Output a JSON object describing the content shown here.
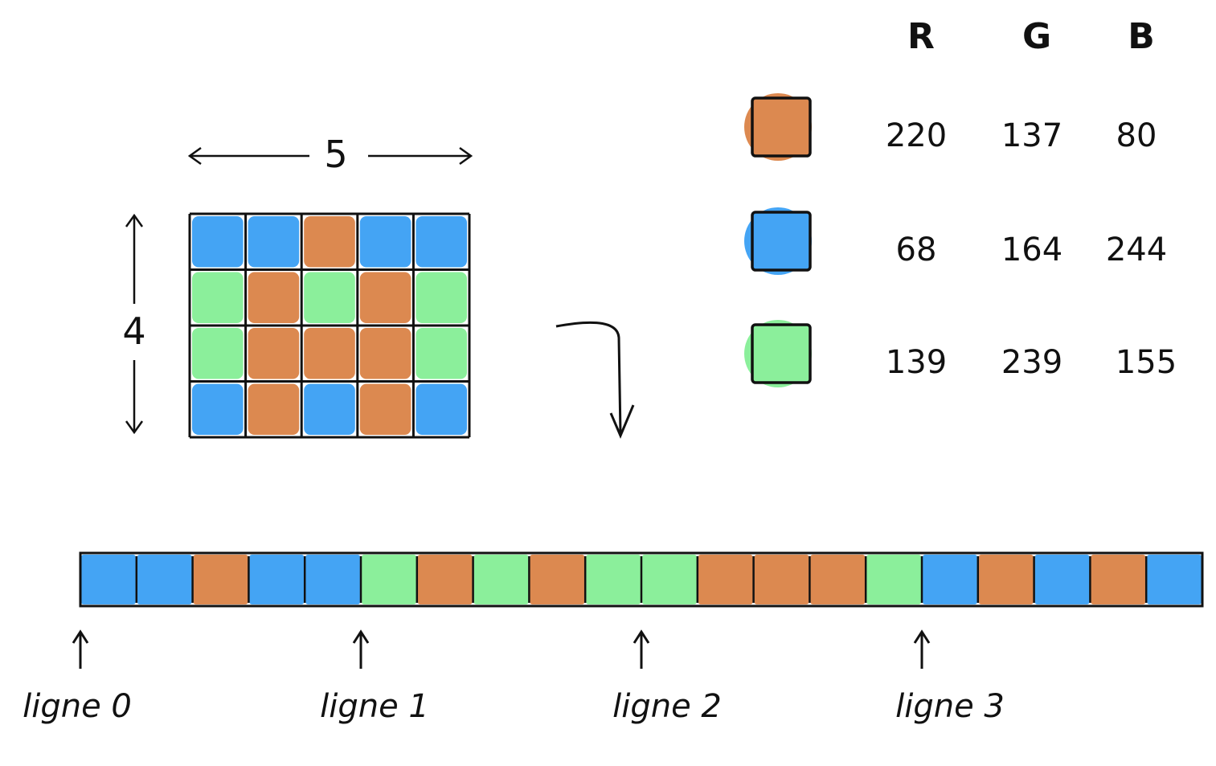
{
  "dimensions": {
    "width_label": "5",
    "height_label": "4"
  },
  "colors": {
    "orange": "#dc8950",
    "blue": "#44a4f4",
    "green": "#8bef9b"
  },
  "grid": {
    "rows": [
      [
        "blue",
        "blue",
        "orange",
        "blue",
        "blue"
      ],
      [
        "green",
        "orange",
        "green",
        "orange",
        "green"
      ],
      [
        "green",
        "orange",
        "orange",
        "orange",
        "green"
      ],
      [
        "blue",
        "orange",
        "blue",
        "orange",
        "blue"
      ]
    ]
  },
  "rgb_table": {
    "headers": [
      "R",
      "G",
      "B"
    ],
    "rows": [
      {
        "color": "orange",
        "values": [
          "220",
          "137",
          "80"
        ]
      },
      {
        "color": "blue",
        "values": [
          "68",
          "164",
          "244"
        ]
      },
      {
        "color": "green",
        "values": [
          "139",
          "239",
          "155"
        ]
      }
    ]
  },
  "row_labels": [
    "ligne 0",
    "ligne 1",
    "ligne 2",
    "ligne 3"
  ]
}
